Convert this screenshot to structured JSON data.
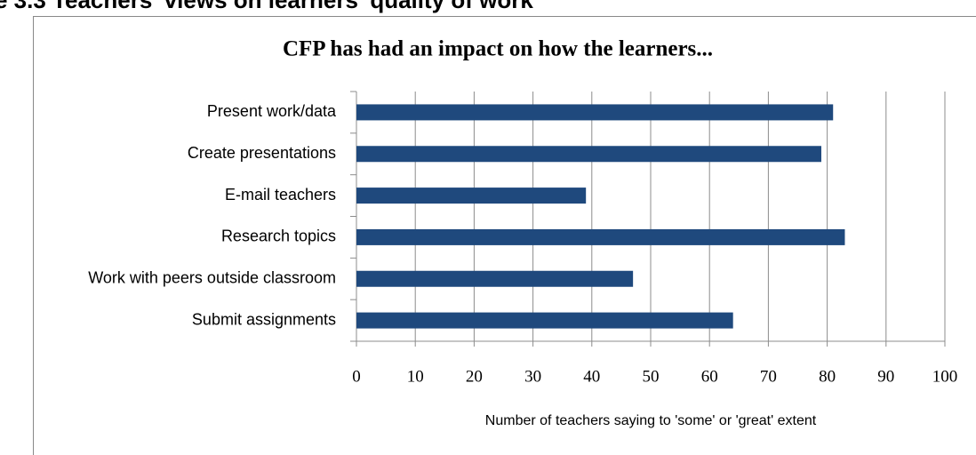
{
  "heading": "e 3.3 Teachers' views on learners' quality of work",
  "chart_data": {
    "type": "bar",
    "orientation": "horizontal",
    "title": "CFP has had an impact on how the learners...",
    "x_label": "Number of teachers saying to 'some' or  'great' extent",
    "categories": [
      "Present work/data",
      "Create presentations",
      "E-mail teachers",
      "Research topics",
      "Work with peers outside classroom",
      "Submit assignments"
    ],
    "values": [
      81,
      79,
      39,
      83,
      47,
      64
    ],
    "color": "#1f497d",
    "xlim": [
      0,
      100
    ],
    "xticks": [
      0,
      10,
      20,
      30,
      40,
      50,
      60,
      70,
      80,
      90,
      100
    ],
    "grid": true
  }
}
